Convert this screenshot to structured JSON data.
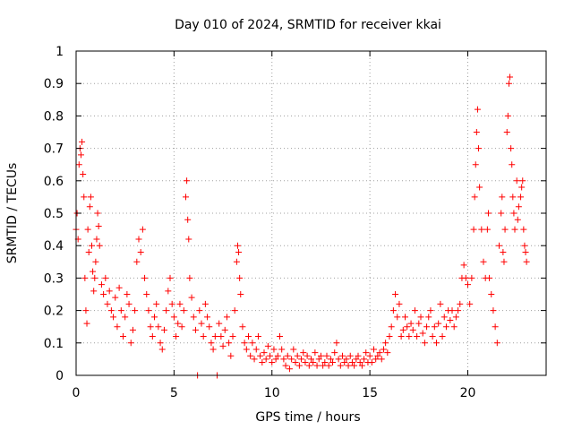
{
  "chart_data": {
    "type": "scatter",
    "title": "Day 010 of 2024, SRMTID for receiver kkai",
    "xlabel": "GPS time / hours",
    "ylabel": "SRMTID / TECUs",
    "xlim": [
      0,
      24
    ],
    "ylim": [
      0,
      1
    ],
    "xticks": [
      0,
      5,
      10,
      15,
      20
    ],
    "xtick_labels": [
      "0",
      "5",
      "10",
      "15",
      "20"
    ],
    "yticks": [
      0,
      0.1,
      0.2,
      0.3,
      0.4,
      0.5,
      0.6,
      0.7,
      0.8,
      0.9,
      1
    ],
    "ytick_labels": [
      "0",
      "0.1",
      "0.2",
      "0.3",
      "0.4",
      "0.5",
      "0.6",
      "0.7",
      "0.8",
      "0.9",
      "1"
    ],
    "grid": true,
    "marker": "plus",
    "color": "#ff0000",
    "series": [
      {
        "name": "SRMTID",
        "points": [
          [
            0.0,
            0.45
          ],
          [
            0.05,
            0.5
          ],
          [
            0.1,
            0.42
          ],
          [
            0.15,
            0.65
          ],
          [
            0.2,
            0.7
          ],
          [
            0.25,
            0.68
          ],
          [
            0.3,
            0.72
          ],
          [
            0.35,
            0.62
          ],
          [
            0.4,
            0.55
          ],
          [
            0.45,
            0.3
          ],
          [
            0.5,
            0.2
          ],
          [
            0.55,
            0.16
          ],
          [
            0.6,
            0.45
          ],
          [
            0.65,
            0.38
          ],
          [
            0.7,
            0.52
          ],
          [
            0.75,
            0.55
          ],
          [
            0.8,
            0.4
          ],
          [
            0.85,
            0.32
          ],
          [
            0.9,
            0.26
          ],
          [
            0.95,
            0.3
          ],
          [
            1.0,
            0.35
          ],
          [
            1.05,
            0.42
          ],
          [
            1.1,
            0.5
          ],
          [
            1.15,
            0.46
          ],
          [
            1.2,
            0.4
          ],
          [
            1.3,
            0.28
          ],
          [
            1.4,
            0.25
          ],
          [
            1.5,
            0.3
          ],
          [
            1.6,
            0.22
          ],
          [
            1.7,
            0.26
          ],
          [
            1.8,
            0.2
          ],
          [
            1.9,
            0.18
          ],
          [
            2.0,
            0.24
          ],
          [
            2.1,
            0.15
          ],
          [
            2.2,
            0.27
          ],
          [
            2.3,
            0.2
          ],
          [
            2.4,
            0.12
          ],
          [
            2.5,
            0.18
          ],
          [
            2.6,
            0.25
          ],
          [
            2.7,
            0.22
          ],
          [
            2.8,
            0.1
          ],
          [
            2.9,
            0.14
          ],
          [
            3.0,
            0.2
          ],
          [
            3.1,
            0.35
          ],
          [
            3.2,
            0.42
          ],
          [
            3.3,
            0.38
          ],
          [
            3.4,
            0.45
          ],
          [
            3.5,
            0.3
          ],
          [
            3.6,
            0.25
          ],
          [
            3.7,
            0.2
          ],
          [
            3.8,
            0.15
          ],
          [
            3.9,
            0.12
          ],
          [
            4.0,
            0.18
          ],
          [
            4.1,
            0.22
          ],
          [
            4.2,
            0.15
          ],
          [
            4.3,
            0.1
          ],
          [
            4.4,
            0.08
          ],
          [
            4.5,
            0.14
          ],
          [
            4.6,
            0.2
          ],
          [
            4.7,
            0.26
          ],
          [
            4.8,
            0.3
          ],
          [
            4.9,
            0.22
          ],
          [
            5.0,
            0.18
          ],
          [
            5.1,
            0.12
          ],
          [
            5.2,
            0.16
          ],
          [
            5.3,
            0.22
          ],
          [
            5.4,
            0.15
          ],
          [
            5.5,
            0.2
          ],
          [
            5.6,
            0.55
          ],
          [
            5.65,
            0.6
          ],
          [
            5.7,
            0.48
          ],
          [
            5.75,
            0.42
          ],
          [
            5.8,
            0.3
          ],
          [
            5.9,
            0.24
          ],
          [
            6.0,
            0.18
          ],
          [
            6.1,
            0.14
          ],
          [
            6.2,
            0.0
          ],
          [
            6.3,
            0.2
          ],
          [
            6.4,
            0.16
          ],
          [
            6.5,
            0.12
          ],
          [
            6.6,
            0.22
          ],
          [
            6.7,
            0.18
          ],
          [
            6.8,
            0.15
          ],
          [
            6.9,
            0.1
          ],
          [
            7.0,
            0.08
          ],
          [
            7.1,
            0.12
          ],
          [
            7.2,
            0.0
          ],
          [
            7.3,
            0.16
          ],
          [
            7.4,
            0.12
          ],
          [
            7.5,
            0.09
          ],
          [
            7.6,
            0.14
          ],
          [
            7.7,
            0.18
          ],
          [
            7.8,
            0.1
          ],
          [
            7.9,
            0.06
          ],
          [
            8.0,
            0.12
          ],
          [
            8.1,
            0.2
          ],
          [
            8.2,
            0.35
          ],
          [
            8.25,
            0.4
          ],
          [
            8.3,
            0.38
          ],
          [
            8.35,
            0.3
          ],
          [
            8.4,
            0.25
          ],
          [
            8.5,
            0.15
          ],
          [
            8.6,
            0.1
          ],
          [
            8.7,
            0.08
          ],
          [
            8.8,
            0.12
          ],
          [
            8.9,
            0.06
          ],
          [
            9.0,
            0.1
          ],
          [
            9.1,
            0.05
          ],
          [
            9.2,
            0.08
          ],
          [
            9.3,
            0.12
          ],
          [
            9.4,
            0.06
          ],
          [
            9.5,
            0.04
          ],
          [
            9.6,
            0.07
          ],
          [
            9.7,
            0.05
          ],
          [
            9.8,
            0.09
          ],
          [
            9.9,
            0.06
          ],
          [
            10.0,
            0.04
          ],
          [
            10.1,
            0.08
          ],
          [
            10.2,
            0.05
          ],
          [
            10.3,
            0.06
          ],
          [
            10.4,
            0.12
          ],
          [
            10.5,
            0.08
          ],
          [
            10.6,
            0.05
          ],
          [
            10.7,
            0.03
          ],
          [
            10.8,
            0.06
          ],
          [
            10.9,
            0.02
          ],
          [
            11.0,
            0.05
          ],
          [
            11.1,
            0.08
          ],
          [
            11.2,
            0.04
          ],
          [
            11.3,
            0.06
          ],
          [
            11.4,
            0.03
          ],
          [
            11.5,
            0.05
          ],
          [
            11.6,
            0.07
          ],
          [
            11.7,
            0.04
          ],
          [
            11.8,
            0.06
          ],
          [
            11.9,
            0.03
          ],
          [
            12.0,
            0.05
          ],
          [
            12.1,
            0.04
          ],
          [
            12.2,
            0.07
          ],
          [
            12.3,
            0.03
          ],
          [
            12.4,
            0.05
          ],
          [
            12.5,
            0.06
          ],
          [
            12.6,
            0.03
          ],
          [
            12.7,
            0.04
          ],
          [
            12.8,
            0.06
          ],
          [
            12.9,
            0.03
          ],
          [
            13.0,
            0.05
          ],
          [
            13.1,
            0.04
          ],
          [
            13.2,
            0.07
          ],
          [
            13.3,
            0.1
          ],
          [
            13.4,
            0.05
          ],
          [
            13.5,
            0.03
          ],
          [
            13.6,
            0.06
          ],
          [
            13.7,
            0.04
          ],
          [
            13.8,
            0.05
          ],
          [
            13.9,
            0.03
          ],
          [
            14.0,
            0.06
          ],
          [
            14.1,
            0.04
          ],
          [
            14.2,
            0.03
          ],
          [
            14.3,
            0.05
          ],
          [
            14.4,
            0.06
          ],
          [
            14.5,
            0.04
          ],
          [
            14.6,
            0.03
          ],
          [
            14.7,
            0.05
          ],
          [
            14.8,
            0.07
          ],
          [
            14.9,
            0.04
          ],
          [
            15.0,
            0.06
          ],
          [
            15.1,
            0.04
          ],
          [
            15.2,
            0.08
          ],
          [
            15.3,
            0.05
          ],
          [
            15.4,
            0.06
          ],
          [
            15.5,
            0.07
          ],
          [
            15.6,
            0.05
          ],
          [
            15.7,
            0.08
          ],
          [
            15.8,
            0.1
          ],
          [
            15.9,
            0.07
          ],
          [
            16.0,
            0.12
          ],
          [
            16.1,
            0.15
          ],
          [
            16.2,
            0.2
          ],
          [
            16.3,
            0.25
          ],
          [
            16.4,
            0.18
          ],
          [
            16.5,
            0.22
          ],
          [
            16.6,
            0.12
          ],
          [
            16.7,
            0.14
          ],
          [
            16.8,
            0.18
          ],
          [
            16.9,
            0.15
          ],
          [
            17.0,
            0.12
          ],
          [
            17.1,
            0.16
          ],
          [
            17.2,
            0.14
          ],
          [
            17.3,
            0.2
          ],
          [
            17.4,
            0.12
          ],
          [
            17.5,
            0.16
          ],
          [
            17.6,
            0.18
          ],
          [
            17.7,
            0.13
          ],
          [
            17.8,
            0.1
          ],
          [
            17.9,
            0.15
          ],
          [
            18.0,
            0.18
          ],
          [
            18.1,
            0.2
          ],
          [
            18.2,
            0.12
          ],
          [
            18.3,
            0.15
          ],
          [
            18.4,
            0.1
          ],
          [
            18.5,
            0.16
          ],
          [
            18.6,
            0.22
          ],
          [
            18.7,
            0.12
          ],
          [
            18.8,
            0.18
          ],
          [
            18.9,
            0.15
          ],
          [
            19.0,
            0.2
          ],
          [
            19.1,
            0.17
          ],
          [
            19.2,
            0.2
          ],
          [
            19.3,
            0.15
          ],
          [
            19.4,
            0.18
          ],
          [
            19.5,
            0.2
          ],
          [
            19.6,
            0.22
          ],
          [
            19.7,
            0.3
          ],
          [
            19.8,
            0.34
          ],
          [
            19.9,
            0.3
          ],
          [
            20.0,
            0.28
          ],
          [
            20.1,
            0.22
          ],
          [
            20.2,
            0.3
          ],
          [
            20.3,
            0.45
          ],
          [
            20.35,
            0.55
          ],
          [
            20.4,
            0.65
          ],
          [
            20.45,
            0.75
          ],
          [
            20.5,
            0.82
          ],
          [
            20.55,
            0.7
          ],
          [
            20.6,
            0.58
          ],
          [
            20.7,
            0.45
          ],
          [
            20.8,
            0.35
          ],
          [
            20.9,
            0.3
          ],
          [
            21.0,
            0.45
          ],
          [
            21.05,
            0.5
          ],
          [
            21.1,
            0.3
          ],
          [
            21.2,
            0.25
          ],
          [
            21.3,
            0.2
          ],
          [
            21.4,
            0.15
          ],
          [
            21.5,
            0.1
          ],
          [
            21.6,
            0.4
          ],
          [
            21.7,
            0.5
          ],
          [
            21.75,
            0.55
          ],
          [
            21.8,
            0.38
          ],
          [
            21.85,
            0.35
          ],
          [
            21.9,
            0.45
          ],
          [
            22.0,
            0.75
          ],
          [
            22.05,
            0.8
          ],
          [
            22.1,
            0.9
          ],
          [
            22.15,
            0.92
          ],
          [
            22.2,
            0.7
          ],
          [
            22.25,
            0.65
          ],
          [
            22.3,
            0.55
          ],
          [
            22.35,
            0.5
          ],
          [
            22.4,
            0.45
          ],
          [
            22.5,
            0.6
          ],
          [
            22.55,
            0.48
          ],
          [
            22.6,
            0.52
          ],
          [
            22.7,
            0.55
          ],
          [
            22.75,
            0.58
          ],
          [
            22.8,
            0.6
          ],
          [
            22.85,
            0.45
          ],
          [
            22.9,
            0.4
          ],
          [
            22.95,
            0.38
          ],
          [
            23.0,
            0.35
          ]
        ]
      }
    ]
  }
}
